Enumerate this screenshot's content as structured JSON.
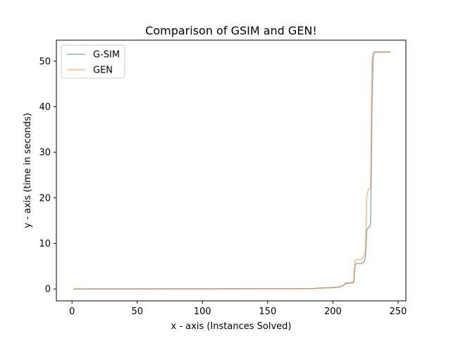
{
  "chart_data": {
    "type": "line",
    "title": "Comparison of GSIM and GEN!",
    "xlabel": "x - axis (Instances Solved)",
    "ylabel": "y - axis (time in seconds)",
    "xlim": [
      -12,
      256
    ],
    "ylim": [
      -2.6,
      54.6
    ],
    "xticks": [
      0,
      50,
      100,
      150,
      200,
      250
    ],
    "yticks": [
      0,
      10,
      20,
      30,
      40,
      50
    ],
    "grid": false,
    "legend_position": "upper-left",
    "series": [
      {
        "name": "G-SIM",
        "color": "#1f77b4",
        "points": [
          [
            1,
            0
          ],
          [
            100,
            0.03
          ],
          [
            185,
            0.08
          ],
          [
            190,
            0.2
          ],
          [
            200,
            0.3
          ],
          [
            206,
            0.5
          ],
          [
            208,
            0.8
          ],
          [
            210,
            1.3
          ],
          [
            215,
            1.4
          ],
          [
            216,
            1.6
          ],
          [
            217,
            5.2
          ],
          [
            218,
            5.6
          ],
          [
            222,
            5.6
          ],
          [
            224,
            6.0
          ],
          [
            225,
            7.0
          ],
          [
            226,
            12.8
          ],
          [
            227,
            13.5
          ],
          [
            228,
            13.5
          ],
          [
            229,
            14.5
          ],
          [
            230,
            40.0
          ],
          [
            231,
            51.5
          ],
          [
            232,
            52.0
          ],
          [
            244,
            52.0
          ]
        ]
      },
      {
        "name": "GEN",
        "color": "#ff7f0e",
        "points": [
          [
            1,
            0
          ],
          [
            100,
            0.03
          ],
          [
            185,
            0.08
          ],
          [
            190,
            0.2
          ],
          [
            200,
            0.3
          ],
          [
            206,
            0.5
          ],
          [
            208,
            0.8
          ],
          [
            210,
            1.2
          ],
          [
            215,
            1.3
          ],
          [
            216,
            1.4
          ],
          [
            217,
            6.2
          ],
          [
            218,
            6.4
          ],
          [
            222,
            6.5
          ],
          [
            224,
            7.3
          ],
          [
            225,
            8.3
          ],
          [
            226,
            20.5
          ],
          [
            227,
            21.5
          ],
          [
            228,
            22.0
          ],
          [
            229,
            22.3
          ],
          [
            230,
            50.0
          ],
          [
            231,
            51.8
          ],
          [
            232,
            52.0
          ],
          [
            244,
            52.0
          ]
        ]
      }
    ]
  }
}
